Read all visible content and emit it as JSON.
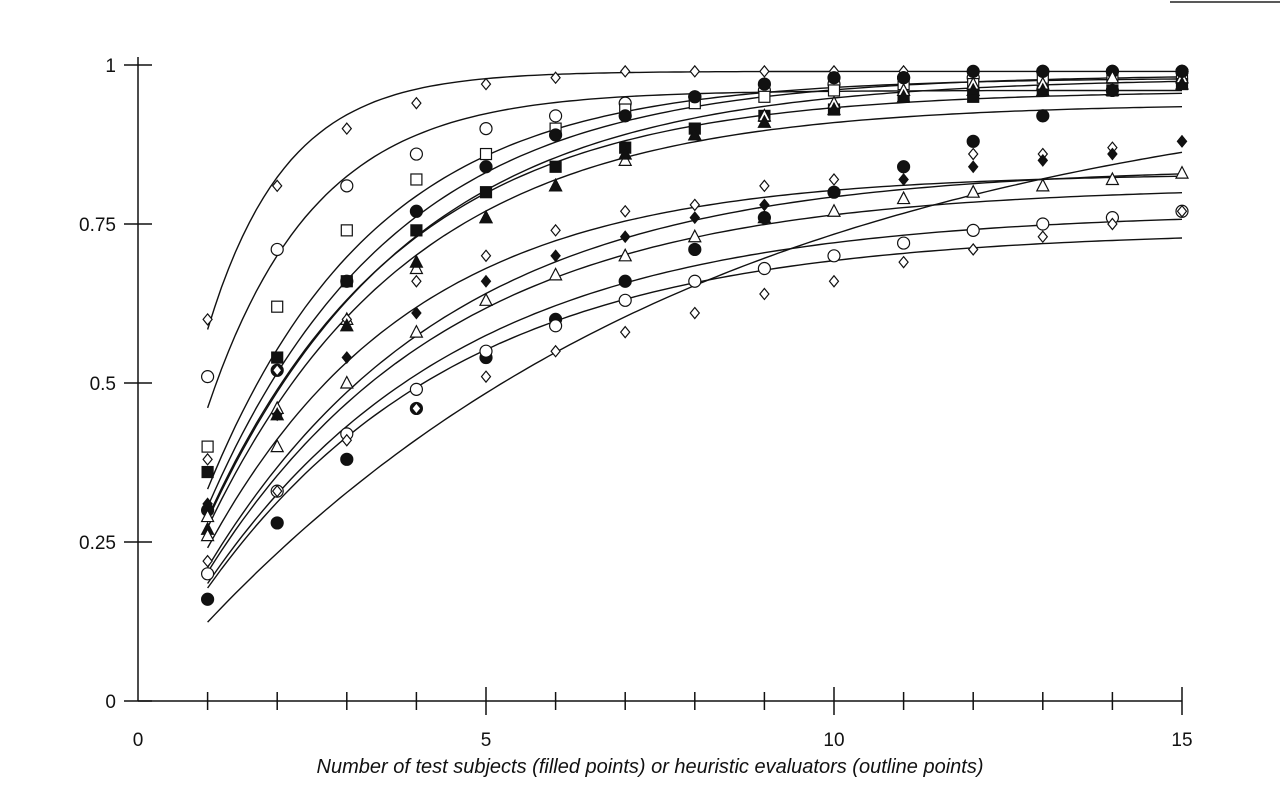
{
  "chart_data": {
    "type": "scatter",
    "title": "",
    "xlabel": "Number of test subjects (filled points) or heuristic evaluators (outline points)",
    "ylabel": "",
    "xlim": [
      0,
      15
    ],
    "ylim": [
      0,
      1
    ],
    "x_ticks": [
      0,
      5,
      10,
      15
    ],
    "x_tick_labels": [
      "0",
      "5",
      "10",
      "15"
    ],
    "y_ticks": [
      0,
      0.25,
      0.5,
      0.75,
      1
    ],
    "y_tick_labels": [
      "0",
      "0.25",
      "0.5",
      "0.75",
      "1"
    ],
    "grid": false,
    "legend": "none",
    "series": [
      {
        "marker": "diamond-open",
        "fit": {
          "L": 0.99,
          "p": 0.59
        },
        "x": [
          1,
          2,
          3,
          4,
          5,
          6,
          7,
          8,
          9,
          10,
          11,
          12,
          13,
          14,
          15
        ],
        "y": [
          0.6,
          0.81,
          0.9,
          0.94,
          0.97,
          0.98,
          0.99,
          0.99,
          0.99,
          0.99,
          0.99,
          0.99,
          0.99,
          0.99,
          0.99
        ]
      },
      {
        "marker": "circle-open",
        "fit": {
          "L": 0.96,
          "p": 0.48
        },
        "x": [
          1,
          2,
          3,
          4,
          5,
          6,
          7,
          8,
          9,
          10,
          11,
          12,
          13,
          14,
          15
        ],
        "y": [
          0.51,
          0.71,
          0.81,
          0.86,
          0.9,
          0.92,
          0.94,
          0.95,
          0.96,
          0.97,
          0.98,
          0.98,
          0.99,
          0.99,
          0.99
        ]
      },
      {
        "marker": "square-open",
        "fit": {
          "L": 0.98,
          "p": 0.34
        },
        "x": [
          1,
          2,
          3,
          4,
          5,
          6,
          7,
          8,
          9,
          10,
          11,
          12,
          13,
          14,
          15
        ],
        "y": [
          0.4,
          0.62,
          0.74,
          0.82,
          0.86,
          0.9,
          0.93,
          0.94,
          0.95,
          0.96,
          0.97,
          0.97,
          0.98,
          0.98,
          0.98
        ]
      },
      {
        "marker": "square-filled",
        "fit": {
          "L": 0.96,
          "p": 0.3
        },
        "x": [
          1,
          2,
          3,
          4,
          5,
          6,
          7,
          8,
          9,
          10,
          11,
          12,
          13,
          14,
          15
        ],
        "y": [
          0.36,
          0.54,
          0.66,
          0.74,
          0.8,
          0.84,
          0.87,
          0.9,
          0.92,
          0.93,
          0.95,
          0.95,
          0.96,
          0.96,
          0.97
        ]
      },
      {
        "marker": "circle-filled",
        "fit": {
          "L": 0.985,
          "p": 0.31
        },
        "x": [
          1,
          2,
          3,
          4,
          5,
          6,
          7,
          8,
          9,
          10,
          11,
          12,
          13,
          14,
          15
        ],
        "y": [
          0.3,
          0.52,
          0.66,
          0.77,
          0.84,
          0.89,
          0.92,
          0.95,
          0.97,
          0.98,
          0.98,
          0.99,
          0.99,
          0.99,
          0.99
        ]
      },
      {
        "marker": "triangle-open",
        "fit": {
          "L": 0.98,
          "p": 0.29
        },
        "x": [
          1,
          2,
          3,
          4,
          5,
          6,
          7,
          8,
          9,
          10,
          11,
          12,
          13,
          14,
          15
        ],
        "y": [
          0.29,
          0.46,
          0.6,
          0.68,
          0.76,
          0.81,
          0.85,
          0.89,
          0.92,
          0.94,
          0.96,
          0.97,
          0.97,
          0.98,
          0.98
        ]
      },
      {
        "marker": "diamond-open",
        "fit": {
          "L": 0.83,
          "p": 0.29
        },
        "x": [
          1,
          2,
          3,
          4,
          5,
          6,
          7,
          8,
          9,
          10,
          11,
          12,
          13,
          14,
          15
        ],
        "y": [
          0.38,
          0.52,
          0.6,
          0.66,
          0.7,
          0.74,
          0.77,
          0.78,
          0.81,
          0.82,
          0.84,
          0.86,
          0.86,
          0.87,
          0.88
        ]
      },
      {
        "marker": "triangle-filled",
        "fit": {
          "L": 0.94,
          "p": 0.29
        },
        "x": [
          1,
          2,
          3,
          4,
          5,
          6,
          7,
          8,
          9,
          10,
          11,
          12,
          13,
          14,
          15
        ],
        "y": [
          0.27,
          0.45,
          0.59,
          0.69,
          0.76,
          0.81,
          0.86,
          0.89,
          0.91,
          0.93,
          0.95,
          0.96,
          0.96,
          0.96,
          0.97
        ]
      },
      {
        "marker": "diamond-filled",
        "fit": {
          "L": 0.84,
          "p": 0.25
        },
        "x": [
          1,
          2,
          3,
          4,
          5,
          6,
          7,
          8,
          9,
          10,
          11,
          12,
          13,
          14,
          15
        ],
        "y": [
          0.31,
          0.45,
          0.54,
          0.61,
          0.66,
          0.7,
          0.73,
          0.76,
          0.78,
          0.8,
          0.82,
          0.84,
          0.85,
          0.86,
          0.88
        ]
      },
      {
        "marker": "triangle-open",
        "fit": {
          "L": 0.81,
          "p": 0.25
        },
        "x": [
          1,
          2,
          3,
          4,
          5,
          6,
          7,
          8,
          9,
          10,
          11,
          12,
          13,
          14,
          15
        ],
        "y": [
          0.26,
          0.4,
          0.5,
          0.58,
          0.63,
          0.67,
          0.7,
          0.73,
          0.76,
          0.77,
          0.79,
          0.8,
          0.81,
          0.82,
          0.83
        ]
      },
      {
        "marker": "circle-filled",
        "fit": {
          "L": 1.0,
          "p": 0.124
        },
        "x": [
          1,
          2,
          3,
          4,
          5,
          6,
          7,
          8,
          9,
          10,
          11,
          12,
          13,
          14,
          15
        ],
        "y": [
          0.16,
          0.28,
          0.38,
          0.46,
          0.54,
          0.6,
          0.66,
          0.71,
          0.76,
          0.8,
          0.84,
          0.88,
          0.92,
          0.96,
          0.99
        ]
      },
      {
        "marker": "circle-open",
        "fit": {
          "L": 0.77,
          "p": 0.24
        },
        "x": [
          1,
          2,
          3,
          4,
          5,
          6,
          7,
          8,
          9,
          10,
          11,
          12,
          13,
          14,
          15
        ],
        "y": [
          0.2,
          0.33,
          0.42,
          0.49,
          0.55,
          0.59,
          0.63,
          0.66,
          0.68,
          0.7,
          0.72,
          0.74,
          0.75,
          0.76,
          0.77
        ]
      },
      {
        "marker": "diamond-open",
        "fit": {
          "L": 0.74,
          "p": 0.24
        },
        "x": [
          1,
          2,
          3,
          4,
          5,
          6,
          7,
          8,
          9,
          10,
          11,
          12,
          13,
          14,
          15
        ],
        "y": [
          0.22,
          0.33,
          0.41,
          0.46,
          0.51,
          0.55,
          0.58,
          0.61,
          0.64,
          0.66,
          0.69,
          0.71,
          0.73,
          0.75,
          0.77
        ]
      }
    ]
  }
}
